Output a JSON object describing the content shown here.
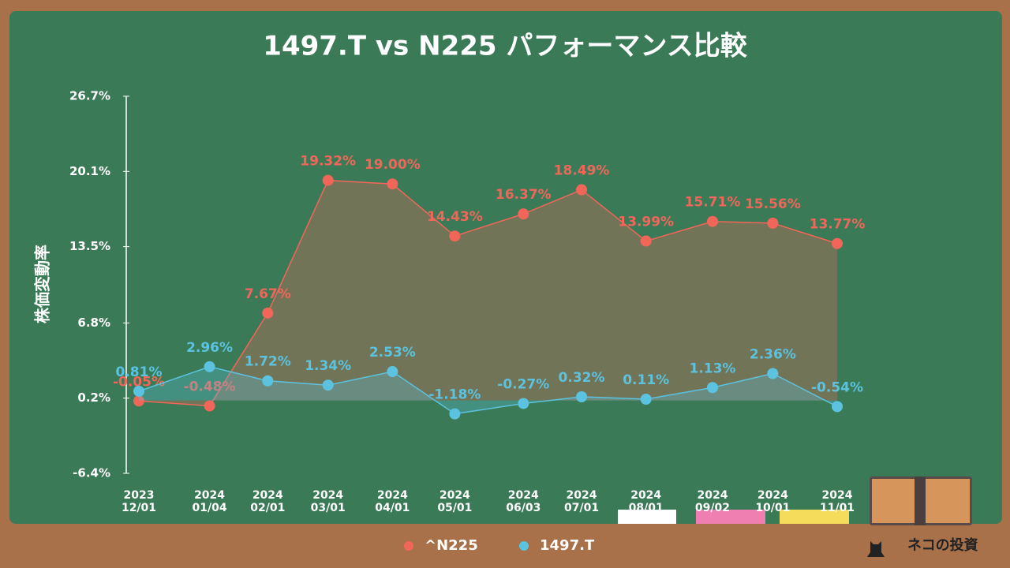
{
  "chart_data": {
    "type": "line",
    "title": "1497.T vs N225 パフォーマンス比較",
    "y_label": "株価変動率",
    "categories": [
      "2023\n12/01",
      "2024\n01/04",
      "2024\n02/01",
      "2024\n03/01",
      "2024\n04/01",
      "2024\n05/01",
      "2024\n06/03",
      "2024\n07/01",
      "2024\n08/01",
      "2024\n09/02",
      "2024\n10/01",
      "2024\n11/01"
    ],
    "series": [
      {
        "name": "^N225",
        "color": "#f2665a",
        "values": [
          -0.05,
          -0.48,
          7.67,
          19.32,
          19.0,
          14.43,
          16.37,
          18.49,
          13.99,
          15.71,
          15.56,
          13.77
        ],
        "value_labels": [
          "-0.05%",
          "-0.48%",
          "7.67%",
          "19.32%",
          "19.00%",
          "14.43%",
          "16.37%",
          "18.49%",
          "13.99%",
          "15.71%",
          "15.56%",
          "13.77%"
        ]
      },
      {
        "name": "1497.T",
        "color": "#5bc3e0",
        "values": [
          0.81,
          2.96,
          1.72,
          1.34,
          2.53,
          -1.18,
          -0.27,
          0.32,
          0.11,
          1.13,
          2.36,
          -0.54
        ],
        "value_labels": [
          "0.81%",
          "2.96%",
          "1.72%",
          "1.34%",
          "2.53%",
          "-1.18%",
          "-0.27%",
          "0.32%",
          "0.11%",
          "1.13%",
          "2.36%",
          "-0.54%"
        ]
      }
    ],
    "ylim": [
      -6.4,
      26.7
    ],
    "yticks": [
      {
        "value": -6.4,
        "label": "-6.4%"
      },
      {
        "value": 0.2,
        "label": "0.2%"
      },
      {
        "value": 6.8,
        "label": "6.8%"
      },
      {
        "value": 13.5,
        "label": "13.5%"
      },
      {
        "value": 20.1,
        "label": "20.1%"
      },
      {
        "value": 26.7,
        "label": "26.7%"
      }
    ],
    "legend": "bottom",
    "watermark": "ネコの投資"
  }
}
